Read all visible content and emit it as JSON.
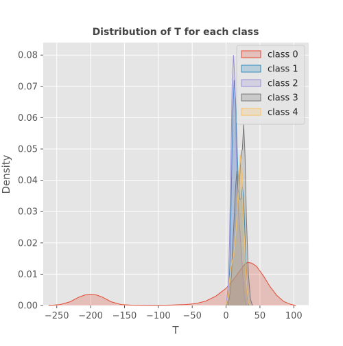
{
  "chart_data": {
    "type": "area",
    "title": "Distribution of T for each class",
    "xlabel": "T",
    "ylabel": "Density",
    "xlim": [
      -270,
      122
    ],
    "ylim": [
      0,
      0.084
    ],
    "x_ticks": [
      -250,
      -200,
      -150,
      -100,
      -50,
      0,
      50,
      100
    ],
    "y_ticks": [
      0.0,
      0.01,
      0.02,
      0.03,
      0.04,
      0.05,
      0.06,
      0.07,
      0.08
    ],
    "x_tick_labels": [
      "−250",
      "−200",
      "−150",
      "−100",
      "−50",
      "0",
      "50",
      "100"
    ],
    "y_tick_labels": [
      "0.00",
      "0.01",
      "0.02",
      "0.03",
      "0.04",
      "0.05",
      "0.06",
      "0.07",
      "0.08"
    ],
    "grid": true,
    "legend_position": "top-right",
    "series": [
      {
        "name": "class 0",
        "color": "#e24a33",
        "points": [
          [
            -262,
            0
          ],
          [
            -245,
            0.0003
          ],
          [
            -230,
            0.0012
          ],
          [
            -218,
            0.0026
          ],
          [
            -208,
            0.0034
          ],
          [
            -200,
            0.0036
          ],
          [
            -192,
            0.0034
          ],
          [
            -182,
            0.0026
          ],
          [
            -170,
            0.0012
          ],
          [
            -155,
            0.0003
          ],
          [
            -140,
            0.0001
          ],
          [
            -100,
            0
          ],
          [
            -60,
            0.0003
          ],
          [
            -45,
            0.0006
          ],
          [
            -30,
            0.0014
          ],
          [
            -15,
            0.003
          ],
          [
            0,
            0.0055
          ],
          [
            10,
            0.008
          ],
          [
            20,
            0.011
          ],
          [
            28,
            0.0133
          ],
          [
            32,
            0.0138
          ],
          [
            38,
            0.0135
          ],
          [
            45,
            0.0125
          ],
          [
            55,
            0.0095
          ],
          [
            65,
            0.006
          ],
          [
            75,
            0.0032
          ],
          [
            85,
            0.0013
          ],
          [
            95,
            0.0004
          ],
          [
            103,
            0
          ]
        ]
      },
      {
        "name": "class 1",
        "color": "#348abd",
        "points": [
          [
            1,
            0
          ],
          [
            4,
            0.004
          ],
          [
            6,
            0.016
          ],
          [
            8,
            0.04
          ],
          [
            10,
            0.062
          ],
          [
            12,
            0.072
          ],
          [
            14,
            0.066
          ],
          [
            16,
            0.052
          ],
          [
            18,
            0.04
          ],
          [
            20,
            0.034
          ],
          [
            22,
            0.034
          ],
          [
            24,
            0.038
          ],
          [
            26,
            0.034
          ],
          [
            28,
            0.022
          ],
          [
            30,
            0.009
          ],
          [
            32,
            0.002
          ],
          [
            34,
            0
          ]
        ]
      },
      {
        "name": "class 2",
        "color": "#988ed5",
        "points": [
          [
            0,
            0
          ],
          [
            3,
            0.006
          ],
          [
            5,
            0.02
          ],
          [
            7,
            0.045
          ],
          [
            9,
            0.07
          ],
          [
            11,
            0.08
          ],
          [
            13,
            0.072
          ],
          [
            15,
            0.05
          ],
          [
            17,
            0.035
          ],
          [
            19,
            0.028
          ],
          [
            21,
            0.022
          ],
          [
            23,
            0.016
          ],
          [
            25,
            0.008
          ],
          [
            27,
            0.003
          ],
          [
            30,
            0
          ]
        ]
      },
      {
        "name": "class 3",
        "color": "#777777",
        "points": [
          [
            3,
            0
          ],
          [
            6,
            0.004
          ],
          [
            8,
            0.01
          ],
          [
            10,
            0.02
          ],
          [
            12,
            0.028
          ],
          [
            14,
            0.038
          ],
          [
            16,
            0.043
          ],
          [
            18,
            0.036
          ],
          [
            20,
            0.04
          ],
          [
            22,
            0.048
          ],
          [
            24,
            0.05
          ],
          [
            26,
            0.058
          ],
          [
            28,
            0.048
          ],
          [
            30,
            0.028
          ],
          [
            33,
            0.01
          ],
          [
            36,
            0.002
          ],
          [
            39,
            0
          ]
        ]
      },
      {
        "name": "class 4",
        "color": "#fbc15e",
        "points": [
          [
            0,
            0
          ],
          [
            3,
            0.003
          ],
          [
            5,
            0.008
          ],
          [
            7,
            0.012
          ],
          [
            9,
            0.014
          ],
          [
            11,
            0.016
          ],
          [
            13,
            0.02
          ],
          [
            15,
            0.025
          ],
          [
            17,
            0.033
          ],
          [
            19,
            0.042
          ],
          [
            21,
            0.048
          ],
          [
            23,
            0.042
          ],
          [
            25,
            0.032
          ],
          [
            27,
            0.022
          ],
          [
            29,
            0.012
          ],
          [
            31,
            0.005
          ],
          [
            33,
            0.001
          ],
          [
            35,
            0
          ]
        ]
      }
    ]
  }
}
